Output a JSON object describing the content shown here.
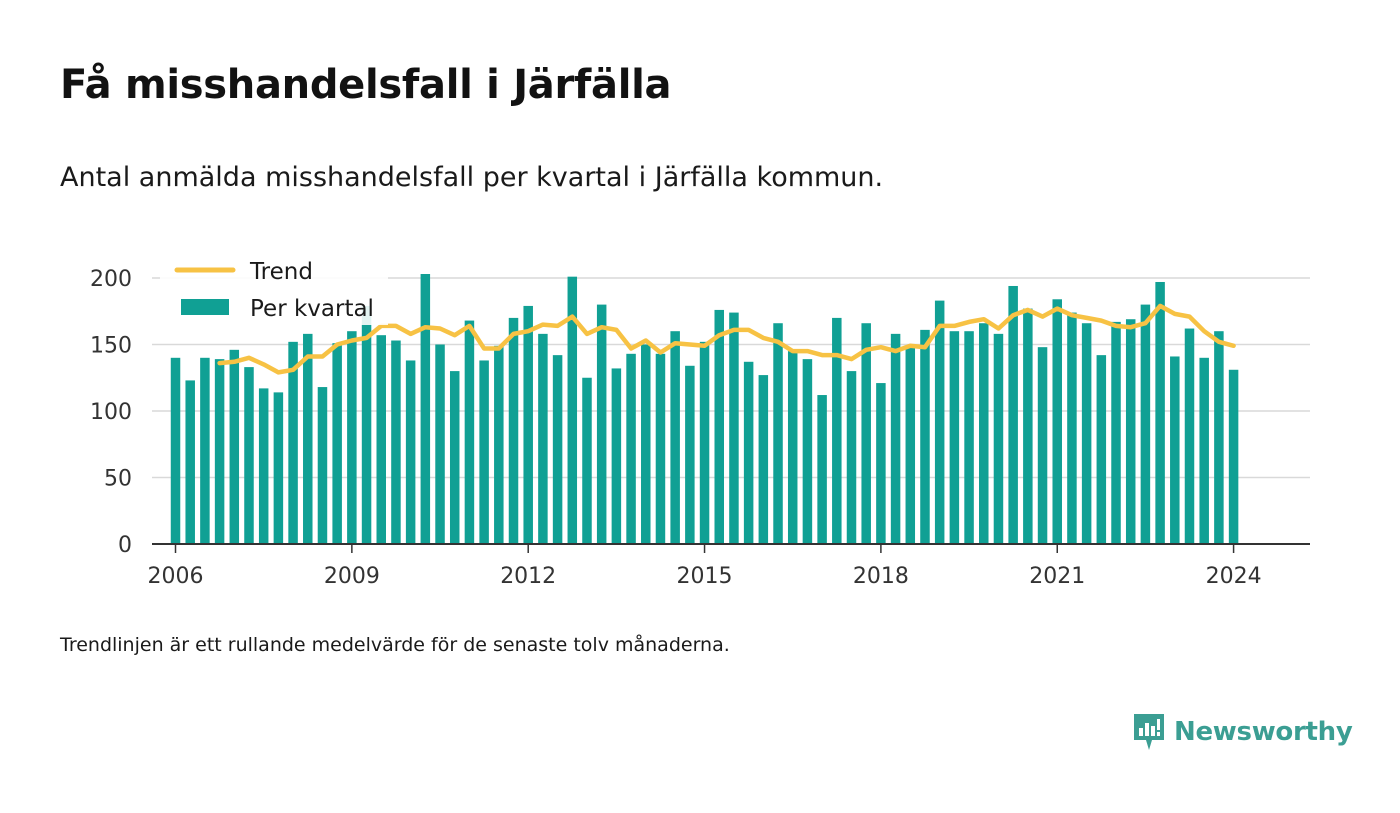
{
  "title": "Få misshandelsfall i Järfälla",
  "subtitle": "Antal anmälda misshandelsfall per kvartal i Järfälla kommun.",
  "note": "Trendlinjen är ett rullande medelvärde för de senaste tolv månaderna.",
  "brand": {
    "name": "Newsworthy",
    "icon": "newsworthy-logo-icon"
  },
  "colors": {
    "bar": "#10a094",
    "trend": "#f7c244",
    "grid": "#d9d9d9",
    "axis": "#333333",
    "brand": "#3b9e93"
  },
  "chart_data": {
    "type": "bar",
    "ylim": [
      0,
      200
    ],
    "yticks": [
      0,
      50,
      100,
      150,
      200
    ],
    "xlim": [
      2005.6,
      2025.3
    ],
    "xticks": [
      2006,
      2009,
      2012,
      2015,
      2018,
      2021,
      2024
    ],
    "grid": true,
    "legend": {
      "position": "top-left",
      "entries": [
        "Trend",
        "Per kvartal"
      ]
    },
    "series": [
      {
        "name": "Per kvartal",
        "type": "bar",
        "x": [
          2006.0,
          2006.25,
          2006.5,
          2006.75,
          2007.0,
          2007.25,
          2007.5,
          2007.75,
          2008.0,
          2008.25,
          2008.5,
          2008.75,
          2009.0,
          2009.25,
          2009.5,
          2009.75,
          2010.0,
          2010.25,
          2010.5,
          2010.75,
          2011.0,
          2011.25,
          2011.5,
          2011.75,
          2012.0,
          2012.25,
          2012.5,
          2012.75,
          2013.0,
          2013.25,
          2013.5,
          2013.75,
          2014.0,
          2014.25,
          2014.5,
          2014.75,
          2015.0,
          2015.25,
          2015.5,
          2015.75,
          2016.0,
          2016.25,
          2016.5,
          2016.75,
          2017.0,
          2017.25,
          2017.5,
          2017.75,
          2018.0,
          2018.25,
          2018.5,
          2018.75,
          2019.0,
          2019.25,
          2019.5,
          2019.75,
          2020.0,
          2020.25,
          2020.5,
          2020.75,
          2021.0,
          2021.25,
          2021.5,
          2021.75,
          2022.0,
          2022.25,
          2022.5,
          2022.75,
          2023.0,
          2023.25,
          2023.5,
          2023.75,
          2024.0
        ],
        "values": [
          140,
          123,
          140,
          139,
          146,
          133,
          117,
          114,
          152,
          158,
          118,
          151,
          160,
          179,
          157,
          153,
          138,
          203,
          150,
          130,
          168,
          138,
          149,
          170,
          179,
          158,
          142,
          201,
          125,
          180,
          132,
          143,
          150,
          143,
          160,
          134,
          152,
          176,
          174,
          137,
          127,
          166,
          145,
          139,
          112,
          170,
          130,
          166,
          121,
          158,
          148,
          161,
          183,
          160,
          160,
          166,
          158,
          194,
          177,
          148,
          184,
          174,
          166,
          142,
          167,
          169,
          180,
          197,
          141,
          162,
          140,
          160,
          131
        ]
      },
      {
        "name": "Trend",
        "type": "line",
        "x": [
          2006.75,
          2007.0,
          2007.25,
          2007.5,
          2007.75,
          2008.0,
          2008.25,
          2008.5,
          2008.75,
          2009.0,
          2009.25,
          2009.5,
          2009.75,
          2010.0,
          2010.25,
          2010.5,
          2010.75,
          2011.0,
          2011.25,
          2011.5,
          2011.75,
          2012.0,
          2012.25,
          2012.5,
          2012.75,
          2013.0,
          2013.25,
          2013.5,
          2013.75,
          2014.0,
          2014.25,
          2014.5,
          2014.75,
          2015.0,
          2015.25,
          2015.5,
          2015.75,
          2016.0,
          2016.25,
          2016.5,
          2016.75,
          2017.0,
          2017.25,
          2017.5,
          2017.75,
          2018.0,
          2018.25,
          2018.5,
          2018.75,
          2019.0,
          2019.25,
          2019.5,
          2019.75,
          2020.0,
          2020.25,
          2020.5,
          2020.75,
          2021.0,
          2021.25,
          2021.5,
          2021.75,
          2022.0,
          2022.25,
          2022.5,
          2022.75,
          2023.0,
          2023.25,
          2023.5,
          2023.75,
          2024.0
        ],
        "values": [
          136,
          137,
          140,
          135,
          129,
          131,
          141,
          141,
          150,
          153,
          155,
          164,
          164,
          158,
          163,
          162,
          157,
          164,
          147,
          147,
          158,
          160,
          165,
          164,
          171,
          158,
          163,
          161,
          147,
          153,
          144,
          151,
          150,
          149,
          157,
          161,
          161,
          155,
          152,
          145,
          145,
          142,
          142,
          139,
          146,
          148,
          145,
          149,
          148,
          164,
          164,
          167,
          169,
          162,
          172,
          176,
          171,
          177,
          172,
          170,
          168,
          164,
          163,
          166,
          179,
          173,
          171,
          160,
          152,
          149
        ]
      }
    ]
  }
}
